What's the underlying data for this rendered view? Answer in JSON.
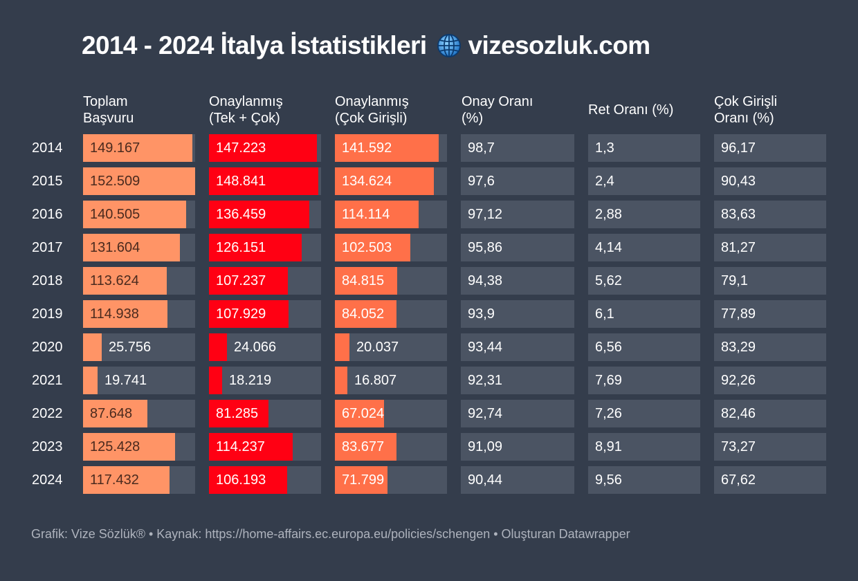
{
  "header": {
    "title_text": "2014 - 2024 İtalya İstatistikleri",
    "title_icon": "globe-icon",
    "title_site": "vizesozluk.com"
  },
  "columns": [
    {
      "label": "Toplam\nBaşvuru"
    },
    {
      "label": "Onaylanmış\n(Tek + Çok)"
    },
    {
      "label": "Onaylanmış\n(Çok Girişli)"
    },
    {
      "label": "Onay Oranı\n(%)"
    },
    {
      "label": "Ret Oranı (%)"
    },
    {
      "label": "Çok Girişli\nOranı (%)"
    }
  ],
  "colors": {
    "background": "#343d4c",
    "cell": "#4b5463",
    "toplam": "#ff9466",
    "onay_tek_cok": "#ff0013",
    "onay_cok": "#ff7049",
    "footer_text": "#aeb3bd"
  },
  "chart_data": {
    "type": "table",
    "years": [
      "2014",
      "2015",
      "2016",
      "2017",
      "2018",
      "2019",
      "2020",
      "2021",
      "2022",
      "2023",
      "2024"
    ],
    "bar_max": 152509,
    "toplam_basvuru": {
      "values": [
        149167,
        152509,
        140505,
        131604,
        113624,
        114938,
        25756,
        19741,
        87648,
        125428,
        117432
      ],
      "labels": [
        "149.167",
        "152.509",
        "140.505",
        "131.604",
        "113.624",
        "114.938",
        "25.756",
        "19.741",
        "87.648",
        "125.428",
        "117.432"
      ]
    },
    "onaylanmis_tek_cok": {
      "values": [
        147223,
        148841,
        136459,
        126151,
        107237,
        107929,
        24066,
        18219,
        81285,
        114237,
        106193
      ],
      "labels": [
        "147.223",
        "148.841",
        "136.459",
        "126.151",
        "107.237",
        "107.929",
        "24.066",
        "18.219",
        "81.285",
        "114.237",
        "106.193"
      ]
    },
    "onaylanmis_cok": {
      "values": [
        141592,
        134624,
        114114,
        102503,
        84815,
        84052,
        20037,
        16807,
        67024,
        83677,
        71799
      ],
      "labels": [
        "141.592",
        "134.624",
        "114.114",
        "102.503",
        "84.815",
        "84.052",
        "20.037",
        "16.807",
        "67.024",
        "83.677",
        "71.799"
      ]
    },
    "onay_orani": [
      "98,7",
      "97,6",
      "97,12",
      "95,86",
      "94,38",
      "93,9",
      "93,44",
      "92,31",
      "92,74",
      "91,09",
      "90,44"
    ],
    "ret_orani": [
      "1,3",
      "2,4",
      "2,88",
      "4,14",
      "5,62",
      "6,1",
      "6,56",
      "7,69",
      "7,26",
      "8,91",
      "9,56"
    ],
    "cok_girisli_orani": [
      "96,17",
      "90,43",
      "83,63",
      "81,27",
      "79,1",
      "77,89",
      "83,29",
      "92,26",
      "82,46",
      "73,27",
      "67,62"
    ]
  },
  "footer": {
    "text": "Grafik: Vize Sözlük® • Kaynak: https://home-affairs.ec.europa.eu/policies/schengen • Oluşturan Datawrapper"
  }
}
